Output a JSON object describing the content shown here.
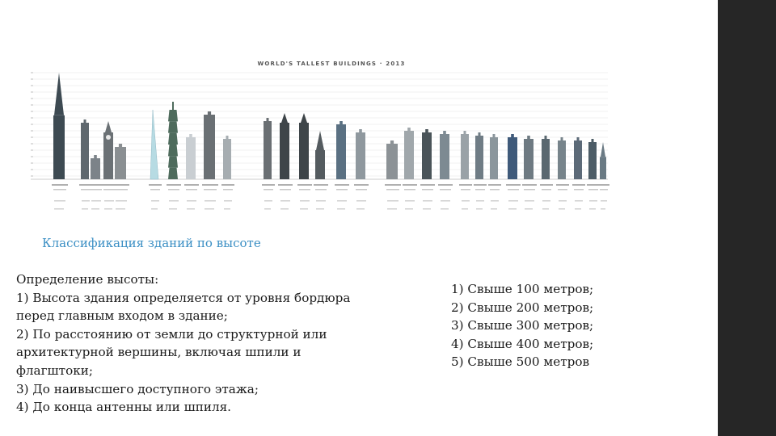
{
  "colors": {
    "sidebar": "#262626",
    "subtitle": "#3b8fc4",
    "text": "#1a1a1a"
  },
  "figure": {
    "title": "WORLD'S TALLEST BUILDINGS · 2013"
  },
  "subtitle": "Классификация зданий по высоте",
  "definition": {
    "lines": [
      "Определение высоты:",
      "1) Высота здания определяется от уровня бордюра",
      "перед главным входом в здание;",
      "2) По расстоянию от земли до структурной или",
      "архитектурной вершины, включая шпили и",
      "флагштоки;",
      "3) До наивысшего доступного этажа;",
      "4) До конца антенны или шпиля."
    ]
  },
  "classes": {
    "items": [
      "1) Свыше 100 метров;",
      "2) Свыше 200 метров;",
      "3) Свыше 300 метров;",
      "4) Свыше 400 метров;",
      "5) Свыше 500 метров"
    ]
  }
}
